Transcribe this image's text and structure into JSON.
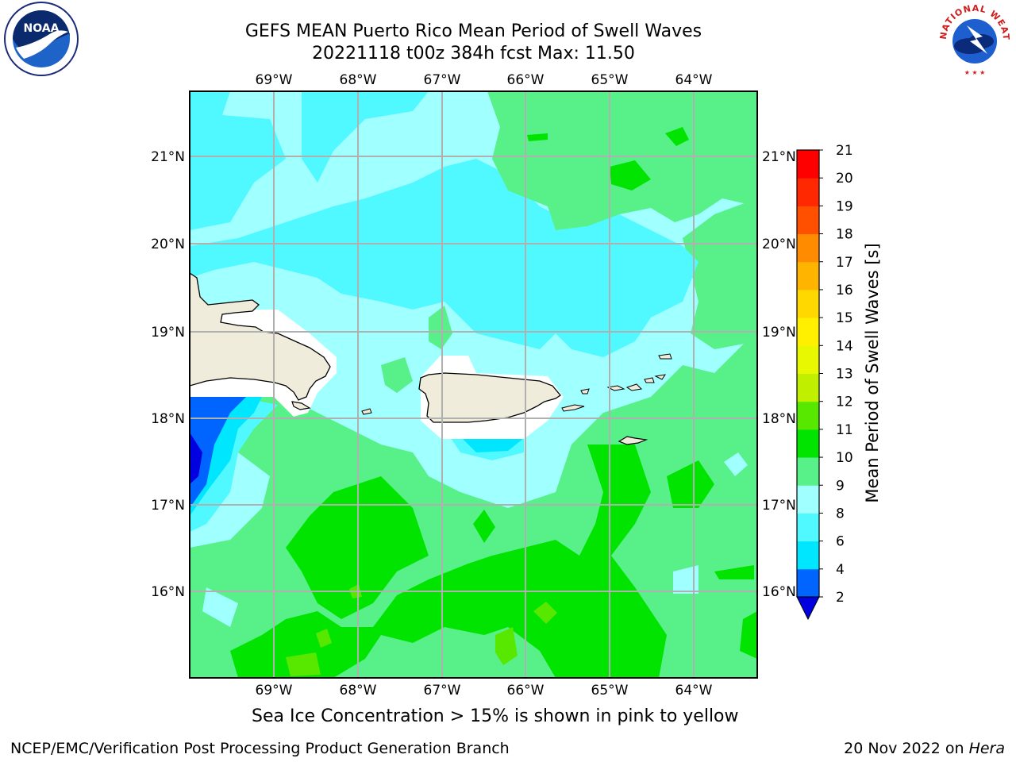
{
  "title": {
    "line1": "GEFS MEAN Puerto Rico Mean Period of Swell Waves",
    "line2": "20221118 t00z 384h fcst   Max: 11.50"
  },
  "logos": {
    "left": {
      "icon": "noaa-logo",
      "text": "NOAA"
    },
    "right": {
      "icon": "national-weather-service-logo",
      "text": "NATIONAL WEATHER SERVICE"
    }
  },
  "map": {
    "lon_labels": [
      "69°W",
      "68°W",
      "67°W",
      "66°W",
      "65°W",
      "64°W"
    ],
    "lat_labels": [
      "16°N",
      "17°N",
      "18°N",
      "19°N",
      "20°N",
      "21°N"
    ],
    "land_color": "#efecdc",
    "grid_color": "#b0b0b0",
    "features": [
      "Hispaniola",
      "Puerto Rico",
      "Virgin Islands",
      "St. Croix"
    ]
  },
  "colorbar": {
    "label": "Mean Period of Swell Waves [s]",
    "ticks": [
      "2",
      "4",
      "6",
      "8",
      "9",
      "10",
      "11",
      "12",
      "13",
      "14",
      "15",
      "16",
      "17",
      "18",
      "19",
      "20",
      "21"
    ],
    "colors": [
      "#0000e0",
      "#0064ff",
      "#00e6ff",
      "#50f8ff",
      "#a0ffff",
      "#58f088",
      "#00e400",
      "#58e800",
      "#c0f000",
      "#e8f800",
      "#fff000",
      "#ffd800",
      "#ffb400",
      "#ff8c00",
      "#ff5000",
      "#ff2800",
      "#ff0000"
    ]
  },
  "caption": "Sea Ice Concentration > 15% is shown in pink to yellow",
  "footer": {
    "left": "NCEP/EMC/Verification Post Processing Product Generation Branch",
    "right_date": "20 Nov 2022 on ",
    "right_machine": "Hera"
  }
}
